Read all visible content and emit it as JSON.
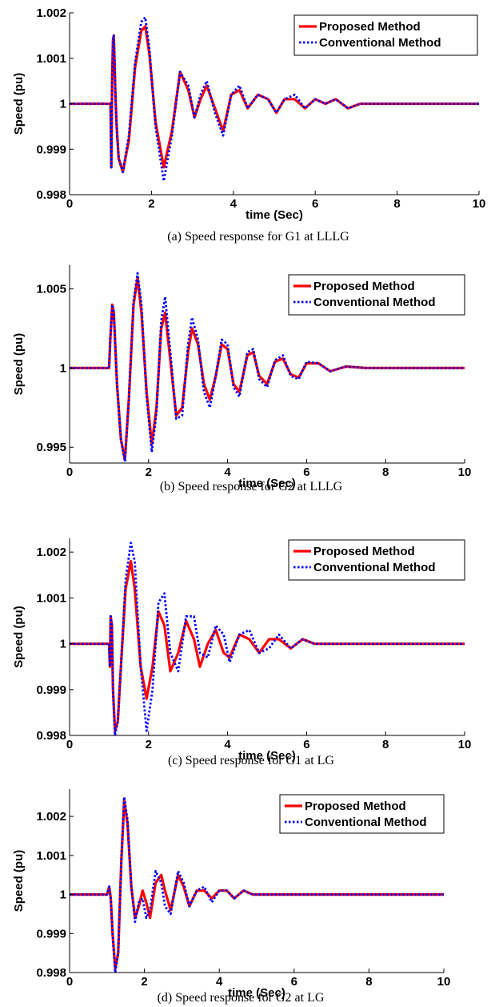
{
  "chart_data": [
    {
      "type": "line",
      "caption": "(a) Speed response for G1 at LLLG",
      "xlabel": "time (Sec)",
      "ylabel": "Speed (pu)",
      "xlim": [
        0,
        10
      ],
      "ylim": [
        0.998,
        1.002
      ],
      "xticks": [
        0,
        2,
        4,
        6,
        8,
        10
      ],
      "yticks": [
        0.998,
        0.999,
        1,
        1.001,
        1.002
      ],
      "ytick_labels": [
        "0.998",
        "0.999",
        "1",
        "1.001",
        "1.002"
      ],
      "legend": "top-right",
      "series": [
        {
          "name": "Proposed Method",
          "color": "#ff0000",
          "style": "solid",
          "x": [
            0,
            0.98,
            1.0,
            1.02,
            1.04,
            1.06,
            1.08,
            1.1,
            1.12,
            1.15,
            1.2,
            1.3,
            1.45,
            1.6,
            1.75,
            1.85,
            1.95,
            2.1,
            2.3,
            2.5,
            2.7,
            2.9,
            3.05,
            3.2,
            3.35,
            3.55,
            3.75,
            3.95,
            4.15,
            4.35,
            4.6,
            4.85,
            5.05,
            5.25,
            5.5,
            5.75,
            6.0,
            6.25,
            6.5,
            6.8,
            7.1,
            7.4,
            7.7,
            8.0,
            8.5,
            9.0,
            9.5,
            10.0
          ],
          "y": [
            1.0,
            1.0,
            1.0,
            0.9986,
            1.0005,
            1.0014,
            1.0015,
            1.0009,
            1.0002,
            0.9995,
            0.9988,
            0.9985,
            0.9992,
            1.0008,
            1.0016,
            1.0017,
            1.0011,
            0.9996,
            0.9986,
            0.9994,
            1.0007,
            1.0003,
            0.9997,
            1.0001,
            1.0004,
            0.9999,
            0.9994,
            1.0002,
            1.0003,
            0.9999,
            1.0002,
            1.0001,
            0.9998,
            1.0001,
            1.0001,
            0.9999,
            1.0001,
            1.0,
            1.0001,
            0.9999,
            1.0,
            1.0,
            1.0,
            1.0,
            1.0,
            1.0,
            1.0,
            1.0
          ]
        },
        {
          "name": "Conventional Method",
          "color": "#0000ff",
          "style": "dotted",
          "x": [
            0,
            0.98,
            1.0,
            1.02,
            1.04,
            1.06,
            1.08,
            1.1,
            1.12,
            1.15,
            1.2,
            1.3,
            1.45,
            1.6,
            1.75,
            1.85,
            1.95,
            2.1,
            2.3,
            2.5,
            2.7,
            2.9,
            3.05,
            3.2,
            3.35,
            3.55,
            3.75,
            3.95,
            4.15,
            4.35,
            4.6,
            4.85,
            5.05,
            5.25,
            5.5,
            5.75,
            6.0,
            6.25,
            6.5,
            6.8,
            7.1,
            7.4,
            7.7,
            8.0,
            8.5,
            9.0,
            9.5,
            10.0
          ],
          "y": [
            1.0,
            1.0,
            1.0,
            0.9986,
            1.0005,
            1.0014,
            1.0015,
            1.0009,
            1.0002,
            0.9995,
            0.9988,
            0.9985,
            0.9993,
            1.0009,
            1.0018,
            1.0019,
            1.0012,
            0.9995,
            0.9983,
            0.9993,
            1.0007,
            1.0004,
            0.9997,
            1.0002,
            1.0005,
            0.9998,
            0.9993,
            1.0002,
            1.0004,
            0.9999,
            1.0002,
            1.0001,
            0.9998,
            1.0001,
            1.0002,
            0.9999,
            1.0001,
            1.0,
            1.0001,
            0.9999,
            1.0,
            1.0,
            1.0,
            1.0,
            1.0,
            1.0,
            1.0,
            1.0
          ]
        }
      ]
    },
    {
      "type": "line",
      "caption": "(b) Speed response for G2 at LLLG",
      "xlabel": "time (Sec)",
      "ylabel": "Speed (pu)",
      "xlim": [
        0,
        10
      ],
      "ylim": [
        0.994,
        1.0065
      ],
      "xticks": [
        0,
        2,
        4,
        6,
        8,
        10
      ],
      "yticks": [
        0.995,
        1,
        1.005
      ],
      "ytick_labels": [
        "0.995",
        "1",
        "1.005"
      ],
      "legend": "top-right",
      "series": [
        {
          "name": "Proposed Method",
          "color": "#ff0000",
          "style": "solid",
          "x": [
            0,
            0.98,
            1.0,
            1.03,
            1.08,
            1.12,
            1.2,
            1.3,
            1.4,
            1.5,
            1.62,
            1.72,
            1.82,
            1.95,
            2.08,
            2.2,
            2.32,
            2.42,
            2.55,
            2.7,
            2.85,
            3.0,
            3.1,
            3.25,
            3.4,
            3.55,
            3.7,
            3.85,
            4.0,
            4.15,
            4.3,
            4.5,
            4.65,
            4.8,
            5.0,
            5.2,
            5.4,
            5.6,
            5.8,
            6.0,
            6.3,
            6.6,
            7.0,
            7.5,
            8.0,
            8.5,
            9.0,
            9.5,
            10.0
          ],
          "y": [
            1.0,
            1.0,
            1.0,
            1.0018,
            1.004,
            1.0035,
            0.999,
            0.9955,
            0.9942,
            0.998,
            1.004,
            1.0057,
            1.0035,
            0.9985,
            0.9952,
            0.9975,
            1.0025,
            1.0035,
            1.0005,
            0.997,
            0.9975,
            1.001,
            1.0025,
            1.0015,
            0.999,
            0.998,
            0.9995,
            1.0015,
            1.0012,
            0.999,
            0.9985,
            1.0008,
            1.001,
            0.9995,
            0.999,
            1.0004,
            1.0006,
            0.9996,
            0.9994,
            1.0003,
            1.0003,
            0.9998,
            1.0001,
            1.0,
            1.0,
            1.0,
            1.0,
            1.0,
            1.0
          ]
        },
        {
          "name": "Conventional Method",
          "color": "#0000ff",
          "style": "dotted",
          "x": [
            0,
            0.98,
            1.0,
            1.03,
            1.08,
            1.12,
            1.2,
            1.3,
            1.4,
            1.5,
            1.62,
            1.72,
            1.82,
            1.95,
            2.08,
            2.2,
            2.32,
            2.42,
            2.55,
            2.7,
            2.85,
            3.0,
            3.1,
            3.25,
            3.4,
            3.55,
            3.7,
            3.85,
            4.0,
            4.15,
            4.3,
            4.5,
            4.65,
            4.8,
            5.0,
            5.2,
            5.4,
            5.6,
            5.8,
            6.0,
            6.3,
            6.6,
            7.0,
            7.5,
            8.0,
            8.5,
            9.0,
            9.5,
            10.0
          ],
          "y": [
            1.0,
            1.0,
            1.0,
            1.0018,
            1.004,
            1.0035,
            0.999,
            0.9955,
            0.9941,
            0.998,
            1.0042,
            1.006,
            1.004,
            0.9982,
            0.9947,
            0.9972,
            1.003,
            1.0045,
            1.001,
            0.9968,
            0.997,
            1.0015,
            1.0032,
            1.0018,
            0.9985,
            0.9975,
            0.9995,
            1.0018,
            1.0015,
            0.9988,
            0.9982,
            1.001,
            1.0012,
            0.9993,
            0.9988,
            1.0005,
            1.0008,
            0.9995,
            0.9993,
            1.0004,
            1.0003,
            0.9998,
            1.0001,
            1.0,
            1.0,
            1.0,
            1.0,
            1.0,
            1.0
          ]
        }
      ]
    },
    {
      "type": "line",
      "caption": "(c) Speed response for G1 at LG",
      "xlabel": "time (Sec)",
      "ylabel": "Speed (pu)",
      "xlim": [
        0,
        10
      ],
      "ylim": [
        0.998,
        1.0023
      ],
      "xticks": [
        0,
        2,
        4,
        6,
        8,
        10
      ],
      "yticks": [
        0.998,
        0.999,
        1,
        1.001,
        1.002
      ],
      "ytick_labels": [
        "0.998",
        "0.999",
        "1",
        "1.001",
        "1.002"
      ],
      "legend": "top-right",
      "series": [
        {
          "name": "Proposed Method",
          "color": "#ff0000",
          "style": "solid",
          "x": [
            0,
            0.98,
            1.0,
            1.02,
            1.04,
            1.07,
            1.1,
            1.15,
            1.22,
            1.3,
            1.42,
            1.55,
            1.65,
            1.8,
            1.95,
            2.1,
            2.25,
            2.4,
            2.55,
            2.75,
            2.95,
            3.15,
            3.3,
            3.5,
            3.7,
            3.9,
            4.05,
            4.3,
            4.55,
            4.8,
            5.05,
            5.3,
            5.6,
            5.9,
            6.2,
            6.5,
            6.9,
            7.3,
            7.8,
            8.5,
            9.0,
            10.0
          ],
          "y": [
            1.0,
            1.0,
            1.0,
            0.9995,
            1.0006,
            1.0004,
            0.999,
            0.9981,
            0.9983,
            0.9995,
            1.0012,
            1.0018,
            1.0012,
            0.9995,
            0.9988,
            0.9995,
            1.0007,
            1.0004,
            0.9994,
            0.9998,
            1.0005,
            1.0001,
            0.9995,
            1.0,
            1.0003,
            0.9998,
            0.9997,
            1.0002,
            1.0001,
            0.9998,
            1.0001,
            1.0001,
            0.9999,
            1.0001,
            1.0,
            1.0,
            1.0,
            1.0,
            1.0,
            1.0,
            1.0,
            1.0
          ]
        },
        {
          "name": "Conventional Method",
          "color": "#0000ff",
          "style": "dotted",
          "x": [
            0,
            0.98,
            1.0,
            1.02,
            1.04,
            1.07,
            1.1,
            1.15,
            1.22,
            1.3,
            1.42,
            1.55,
            1.65,
            1.8,
            1.95,
            2.1,
            2.25,
            2.4,
            2.55,
            2.75,
            2.95,
            3.15,
            3.3,
            3.5,
            3.7,
            3.9,
            4.05,
            4.3,
            4.55,
            4.8,
            5.05,
            5.3,
            5.6,
            5.9,
            6.2,
            6.5,
            6.9,
            7.3,
            7.8,
            8.5,
            9.0,
            10.0
          ],
          "y": [
            1.0,
            1.0,
            1.0,
            0.9995,
            1.0006,
            1.0004,
            0.999,
            0.998,
            0.9983,
            0.9995,
            1.0014,
            1.0022,
            1.0018,
            0.9995,
            0.9981,
            0.999,
            1.0009,
            1.0011,
            0.9998,
            0.9994,
            1.0006,
            1.0006,
            0.9998,
            0.9997,
            1.0004,
            1.0002,
            0.9996,
            1.0002,
            1.0003,
            0.9998,
            0.9999,
            1.0002,
            0.9999,
            1.0001,
            1.0,
            1.0,
            1.0,
            1.0,
            1.0,
            1.0,
            1.0,
            1.0
          ]
        }
      ]
    },
    {
      "type": "line",
      "caption": "(d) Speed response for G2 at LG",
      "xlabel": "time (Sec)",
      "ylabel": "Speed (pu)",
      "xlim": [
        0,
        10
      ],
      "ylim": [
        0.998,
        1.0027
      ],
      "xticks": [
        0,
        2,
        4,
        6,
        8,
        10
      ],
      "yticks": [
        0.998,
        0.999,
        1,
        1.001,
        1.002
      ],
      "ytick_labels": [
        "0.998",
        "0.999",
        "1",
        "1.001",
        "1.002"
      ],
      "legend": "top-right",
      "series": [
        {
          "name": "Proposed Method",
          "color": "#ff0000",
          "style": "solid",
          "x": [
            0,
            0.98,
            1.0,
            1.03,
            1.06,
            1.1,
            1.15,
            1.22,
            1.3,
            1.38,
            1.46,
            1.55,
            1.65,
            1.75,
            1.85,
            1.95,
            2.05,
            2.15,
            2.3,
            2.45,
            2.55,
            2.7,
            2.9,
            3.05,
            3.2,
            3.4,
            3.6,
            3.8,
            4.0,
            4.2,
            4.4,
            4.65,
            4.9,
            5.2,
            5.5,
            5.8,
            6.2,
            6.6,
            7.0,
            7.5,
            8.0,
            9.0,
            10.0
          ],
          "y": [
            1.0,
            1.0,
            1.0,
            1.0001,
            1.0002,
            0.9999,
            0.999,
            0.9981,
            0.9985,
            1.0008,
            1.0024,
            1.0018,
            1.0002,
            0.9994,
            0.9997,
            1.0001,
            0.9998,
            0.9994,
            1.0003,
            1.0005,
            1.0001,
            0.9996,
            1.0005,
            1.0002,
            0.9997,
            1.0001,
            1.0001,
            0.9999,
            1.0001,
            1.0001,
            0.9999,
            1.0001,
            1.0,
            1.0,
            1.0,
            1.0,
            1.0,
            1.0,
            1.0,
            1.0,
            1.0,
            1.0,
            1.0
          ]
        },
        {
          "name": "Conventional Method",
          "color": "#0000ff",
          "style": "dotted",
          "x": [
            0,
            0.98,
            1.0,
            1.03,
            1.06,
            1.1,
            1.15,
            1.22,
            1.3,
            1.38,
            1.46,
            1.55,
            1.65,
            1.75,
            1.85,
            1.95,
            2.05,
            2.15,
            2.3,
            2.45,
            2.55,
            2.7,
            2.9,
            3.05,
            3.2,
            3.4,
            3.6,
            3.8,
            4.0,
            4.2,
            4.4,
            4.65,
            4.9,
            5.2,
            5.5,
            5.8,
            6.2,
            6.6,
            7.0,
            7.5,
            8.0,
            9.0,
            10.0
          ],
          "y": [
            1.0,
            1.0,
            1.0,
            1.0001,
            1.0002,
            0.9999,
            0.999,
            0.998,
            0.9985,
            1.0008,
            1.0025,
            1.0019,
            1.0002,
            0.9993,
            0.9998,
            0.9999,
            0.9994,
            0.9996,
            1.0006,
            1.0003,
            0.9997,
            0.9995,
            1.0006,
            1.0003,
            0.9997,
            1.0001,
            1.0002,
            0.9998,
            1.0001,
            1.0001,
            0.9999,
            1.0001,
            1.0,
            1.0,
            1.0,
            1.0,
            1.0,
            1.0,
            1.0,
            1.0,
            1.0,
            1.0,
            1.0
          ]
        }
      ]
    }
  ]
}
